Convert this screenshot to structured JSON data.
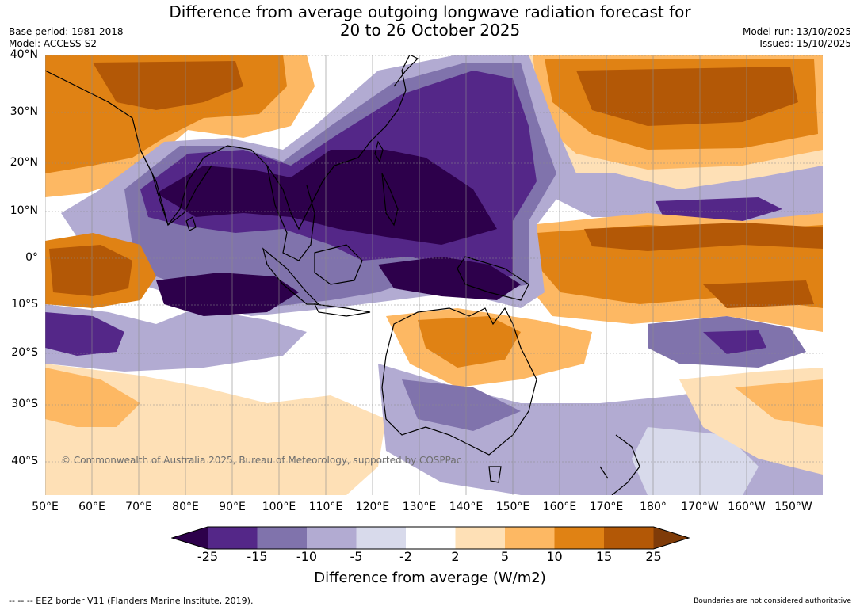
{
  "title": {
    "line1": "Difference from average outgoing longwave radiation forecast for",
    "line2": "20 to 26 October 2025"
  },
  "meta_left": {
    "base_period": "Base period: 1981-2018",
    "model": "Model: ACCESS-S2"
  },
  "meta_right": {
    "model_run": "Model run: 13/10/2025",
    "issued": "Issued: 15/10/2025"
  },
  "lat_ticks": [
    "40°N",
    "30°N",
    "20°N",
    "10°N",
    "0°",
    "10°S",
    "20°S",
    "30°S",
    "40°S"
  ],
  "lon_ticks": [
    "50°E",
    "60°E",
    "70°E",
    "80°E",
    "90°E",
    "100°E",
    "110°E",
    "120°E",
    "130°E",
    "140°E",
    "150°E",
    "160°E",
    "170°E",
    "180°",
    "170°W",
    "160°W",
    "150°W"
  ],
  "copyright": "© Commonwealth of Australia 2025, Bureau of Meteorology, supported by COSPPac",
  "colorbar": {
    "labels": [
      "-25",
      "-15",
      "-10",
      "-5",
      "-2",
      "2",
      "5",
      "10",
      "15",
      "25"
    ],
    "colors": [
      "#2d004b",
      "#542788",
      "#8073ac",
      "#b2abd2",
      "#d8daeb",
      "#ffffff",
      "#fee0b6",
      "#fdb863",
      "#e08214",
      "#b35806",
      "#7f3b08"
    ],
    "title": "Difference from average (W/m2)"
  },
  "eez_note": "--  --  -- EEZ border V11 (Flanders Marine Institute, 2019).",
  "disclaimer": "Boundaries are not considered authoritative"
}
